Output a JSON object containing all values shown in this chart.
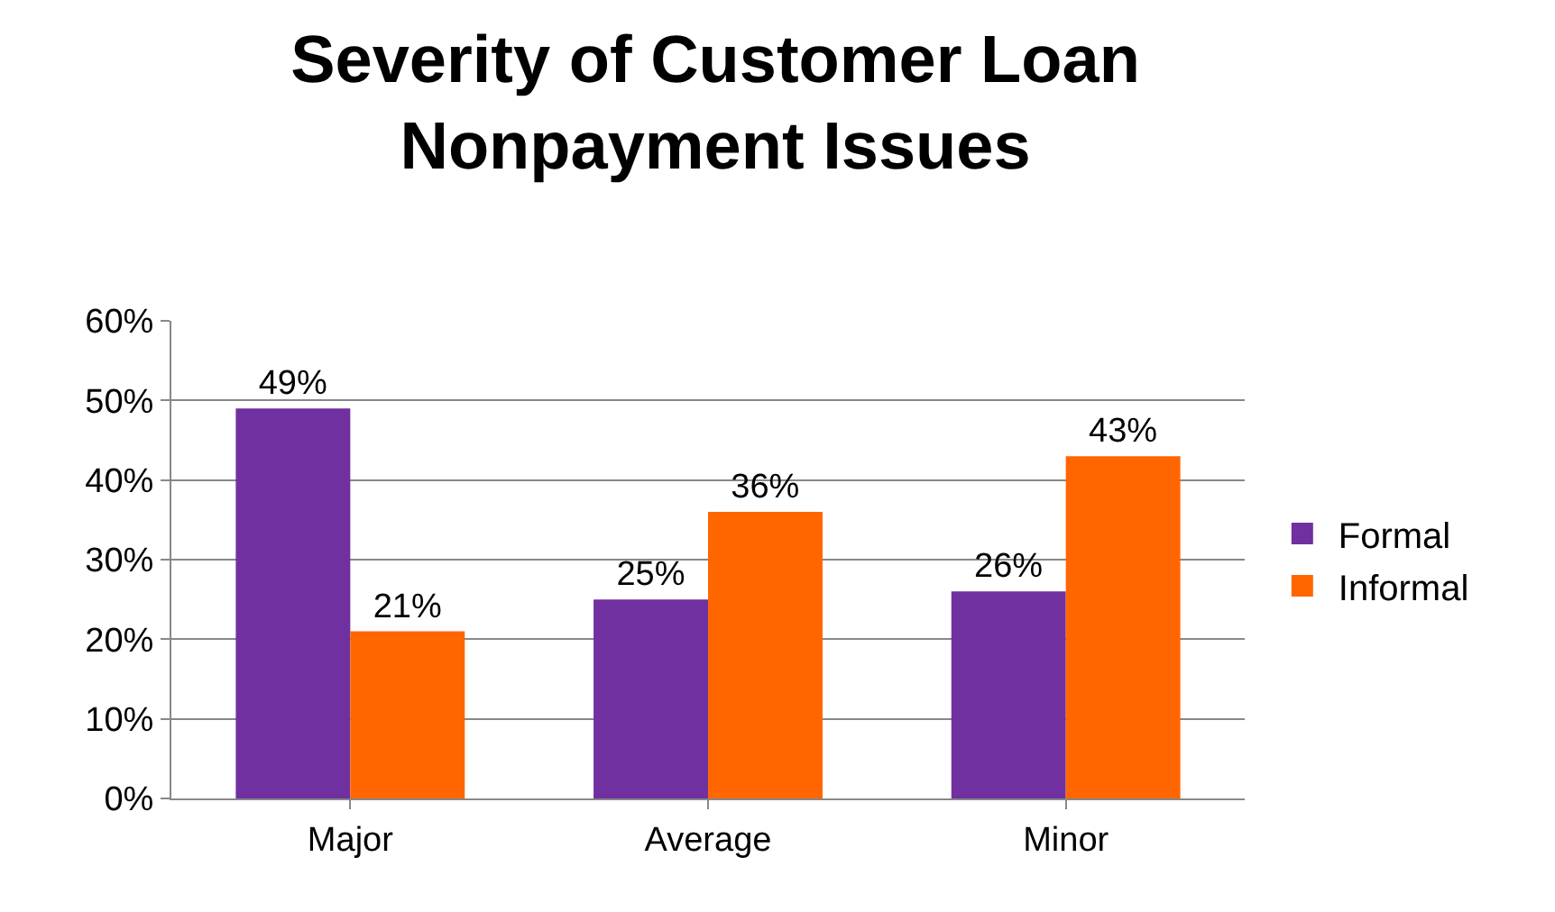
{
  "chart_data": {
    "type": "bar",
    "title": "Severity of Customer Loan Nonpayment Issues",
    "categories": [
      "Major",
      "Average",
      "Minor"
    ],
    "series": [
      {
        "name": "Formal",
        "color": "#7030a0",
        "values": [
          49,
          25,
          26
        ],
        "value_labels": [
          "49%",
          "25%",
          "26%"
        ]
      },
      {
        "name": "Informal",
        "color": "#ff6600",
        "values": [
          21,
          36,
          43
        ],
        "value_labels": [
          "21%",
          "36%",
          "43%"
        ]
      }
    ],
    "ylim": [
      0,
      60
    ],
    "yticks": [
      {
        "value": 0,
        "label": "0%"
      },
      {
        "value": 10,
        "label": "10%"
      },
      {
        "value": 20,
        "label": "20%"
      },
      {
        "value": 30,
        "label": "30%"
      },
      {
        "value": 40,
        "label": "40%"
      },
      {
        "value": 50,
        "label": "50%"
      },
      {
        "value": 60,
        "label": "60%"
      }
    ],
    "grid": "y",
    "legend": "right"
  }
}
